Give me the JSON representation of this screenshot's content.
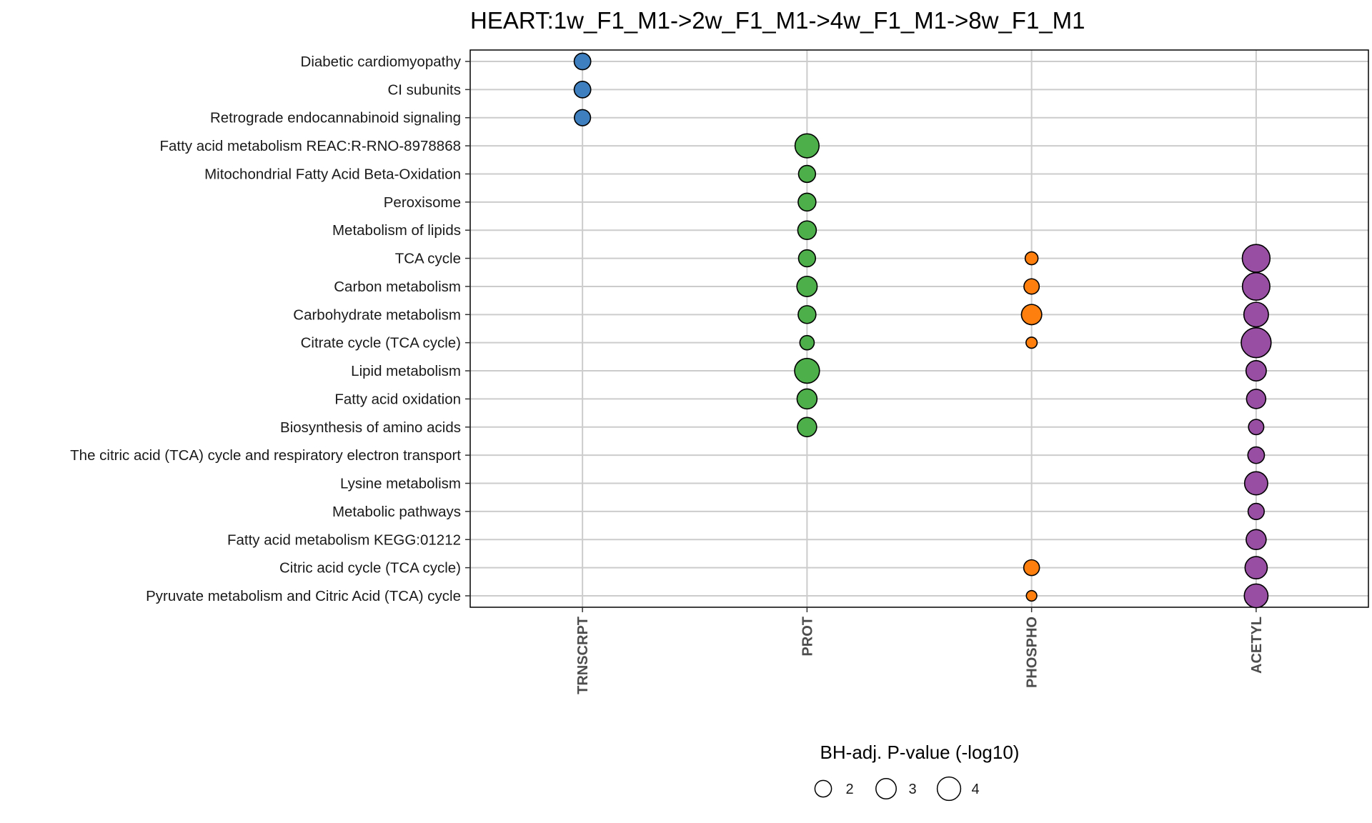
{
  "chart_data": {
    "type": "scatter",
    "title": "HEART:1w_F1_M1->2w_F1_M1->4w_F1_M1->8w_F1_M1",
    "xlabel": "",
    "ylabel": "",
    "x_categories": [
      "TRNSCRPT",
      "PROT",
      "PHOSPHO",
      "ACETYL"
    ],
    "y_categories": [
      "Diabetic cardiomyopathy",
      "CI subunits",
      "Retrograde endocannabinoid signaling",
      "Fatty acid metabolism REAC:R-RNO-8978868",
      "Mitochondrial Fatty Acid Beta-Oxidation",
      "Peroxisome",
      "Metabolism of lipids",
      "TCA cycle",
      "Carbon metabolism",
      "Carbohydrate metabolism",
      "Citrate cycle (TCA cycle)",
      "Lipid metabolism",
      "Fatty acid oxidation",
      "Biosynthesis of amino acids",
      "The citric acid (TCA) cycle and respiratory electron transport",
      "Lysine metabolism",
      "Metabolic pathways",
      "Fatty acid metabolism KEGG:01212",
      "Citric acid cycle (TCA cycle)",
      "Pyruvate metabolism and Citric Acid (TCA) cycle"
    ],
    "series_colors": {
      "TRNSCRPT": "#3d7fbf",
      "PROT": "#4daf4a",
      "PHOSPHO": "#ff7f0e",
      "ACETYL": "#984ea3"
    },
    "size_legend": {
      "title": "BH-adj. P-value (-log10)",
      "values": [
        2,
        3,
        4
      ],
      "labels": [
        "2",
        "3",
        "4"
      ]
    },
    "grid": true,
    "legend_position": "bottom",
    "points": [
      {
        "x": "TRNSCRPT",
        "y": "Diabetic cardiomyopathy",
        "value": 2.0
      },
      {
        "x": "TRNSCRPT",
        "y": "CI subunits",
        "value": 2.0
      },
      {
        "x": "TRNSCRPT",
        "y": "Retrograde endocannabinoid signaling",
        "value": 1.9
      },
      {
        "x": "PROT",
        "y": "Fatty acid metabolism REAC:R-RNO-8978868",
        "value": 4.2
      },
      {
        "x": "PROT",
        "y": "Mitochondrial Fatty Acid Beta-Oxidation",
        "value": 2.1
      },
      {
        "x": "PROT",
        "y": "Peroxisome",
        "value": 2.3
      },
      {
        "x": "PROT",
        "y": "Metabolism of lipids",
        "value": 2.5
      },
      {
        "x": "PROT",
        "y": "TCA cycle",
        "value": 2.1
      },
      {
        "x": "PROT",
        "y": "Carbon metabolism",
        "value": 3.0
      },
      {
        "x": "PROT",
        "y": "Carbohydrate metabolism",
        "value": 2.3
      },
      {
        "x": "PROT",
        "y": "Citrate cycle (TCA cycle)",
        "value": 1.5
      },
      {
        "x": "PROT",
        "y": "Lipid metabolism",
        "value": 4.5
      },
      {
        "x": "PROT",
        "y": "Fatty acid oxidation",
        "value": 2.9
      },
      {
        "x": "PROT",
        "y": "Biosynthesis of amino acids",
        "value": 2.7
      },
      {
        "x": "PHOSPHO",
        "y": "TCA cycle",
        "value": 1.2
      },
      {
        "x": "PHOSPHO",
        "y": "Carbon metabolism",
        "value": 1.7
      },
      {
        "x": "PHOSPHO",
        "y": "Carbohydrate metabolism",
        "value": 3.0
      },
      {
        "x": "PHOSPHO",
        "y": "Citrate cycle (TCA cycle)",
        "value": 0.9
      },
      {
        "x": "PHOSPHO",
        "y": "Citric acid cycle (TCA cycle)",
        "value": 1.8
      },
      {
        "x": "PHOSPHO",
        "y": "Pyruvate metabolism and Citric Acid (TCA) cycle",
        "value": 0.8
      },
      {
        "x": "ACETYL",
        "y": "TCA cycle",
        "value": 5.6
      },
      {
        "x": "ACETYL",
        "y": "Carbon metabolism",
        "value": 5.5
      },
      {
        "x": "ACETYL",
        "y": "Carbohydrate metabolism",
        "value": 4.4
      },
      {
        "x": "ACETYL",
        "y": "Citrate cycle (TCA cycle)",
        "value": 6.5
      },
      {
        "x": "ACETYL",
        "y": "Lipid metabolism",
        "value": 3.0
      },
      {
        "x": "ACETYL",
        "y": "Fatty acid oxidation",
        "value": 2.7
      },
      {
        "x": "ACETYL",
        "y": "Biosynthesis of amino acids",
        "value": 1.7
      },
      {
        "x": "ACETYL",
        "y": "The citric acid (TCA) cycle and respiratory electron transport",
        "value": 2.0
      },
      {
        "x": "ACETYL",
        "y": "Lysine metabolism",
        "value": 3.9
      },
      {
        "x": "ACETYL",
        "y": "Metabolic pathways",
        "value": 1.9
      },
      {
        "x": "ACETYL",
        "y": "Fatty acid metabolism KEGG:01212",
        "value": 2.9
      },
      {
        "x": "ACETYL",
        "y": "Citric acid cycle (TCA cycle)",
        "value": 3.6
      },
      {
        "x": "ACETYL",
        "y": "Pyruvate metabolism and Citric Acid (TCA) cycle",
        "value": 4.1
      }
    ]
  }
}
